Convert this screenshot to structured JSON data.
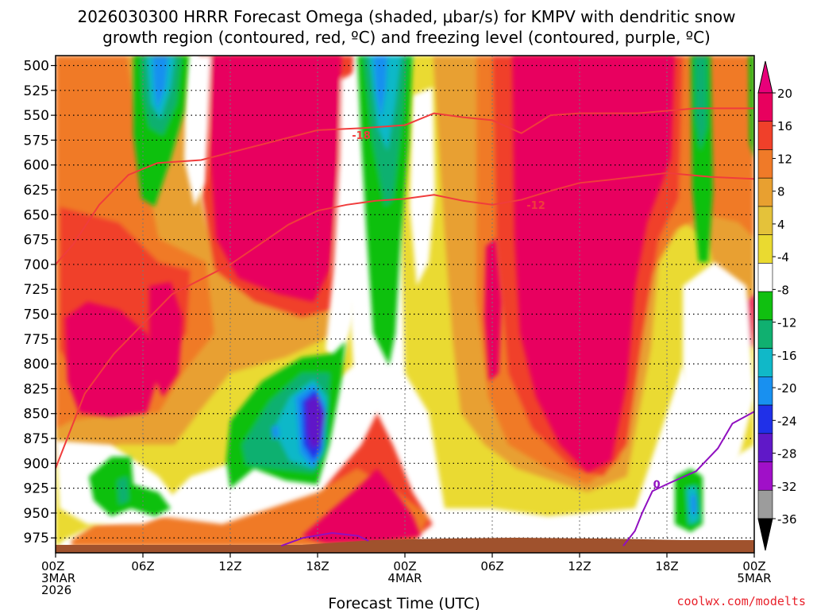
{
  "chart_data": {
    "type": "heatmap",
    "title_line1": "2026030300 HRRR Forecast Omega (shaded, μbar/s) for KMPV with dendritic snow",
    "title_line2": "growth region (contoured, red, ºC) and freezing level (contoured, purple, ºC)",
    "xlabel": "Forecast Time (UTC)",
    "credit": "coolwx.com/modelts",
    "y_ticks": [
      500,
      525,
      550,
      575,
      600,
      625,
      650,
      675,
      700,
      725,
      750,
      775,
      800,
      825,
      850,
      875,
      900,
      925,
      950,
      975
    ],
    "ylim": [
      490,
      990
    ],
    "x_range_hours": [
      0,
      48
    ],
    "x_ticks": [
      {
        "hour": 0,
        "label": "00Z",
        "sub1": "3MAR",
        "sub2": "2026"
      },
      {
        "hour": 6,
        "label": "06Z",
        "sub1": "",
        "sub2": ""
      },
      {
        "hour": 12,
        "label": "12Z",
        "sub1": "",
        "sub2": ""
      },
      {
        "hour": 18,
        "label": "18Z",
        "sub1": "",
        "sub2": ""
      },
      {
        "hour": 24,
        "label": "00Z",
        "sub1": "4MAR",
        "sub2": ""
      },
      {
        "hour": 30,
        "label": "06Z",
        "sub1": "",
        "sub2": ""
      },
      {
        "hour": 36,
        "label": "12Z",
        "sub1": "",
        "sub2": ""
      },
      {
        "hour": 42,
        "label": "18Z",
        "sub1": "",
        "sub2": ""
      },
      {
        "hour": 48,
        "label": "00Z",
        "sub1": "5MAR",
        "sub2": ""
      }
    ],
    "colorbar": {
      "labels": [
        "20",
        "16",
        "12",
        "8",
        "4",
        "-4",
        "-8",
        "-12",
        "-16",
        "-20",
        "-24",
        "-28",
        "-32",
        "-36"
      ],
      "bins": [
        {
          "color": "#e8005e"
        },
        {
          "color": "#f0402a"
        },
        {
          "color": "#f07a28"
        },
        {
          "color": "#e8a030"
        },
        {
          "color": "#e4c23a"
        },
        {
          "color": "#eada30"
        },
        {
          "color": "#ffffff"
        },
        {
          "color": "#10c010"
        },
        {
          "color": "#10b070"
        },
        {
          "color": "#10b8c8"
        },
        {
          "color": "#1890f0"
        },
        {
          "color": "#2030e8"
        },
        {
          "color": "#6018c8"
        },
        {
          "color": "#a010c8"
        },
        {
          "color": "#9c9c9c"
        }
      ],
      "top_color": "#e8007a",
      "bottom_color": "#000000"
    },
    "dgz_contours": [
      {
        "label": "-18",
        "color": "#f03c3c",
        "points": [
          [
            0,
            700
          ],
          [
            1.2,
            680
          ],
          [
            3,
            640
          ],
          [
            5,
            610
          ],
          [
            7,
            598
          ],
          [
            10,
            595
          ],
          [
            14,
            580
          ],
          [
            18,
            565
          ],
          [
            21,
            563
          ],
          [
            24,
            560
          ],
          [
            26,
            548
          ],
          [
            28,
            552
          ],
          [
            30,
            555
          ],
          [
            32,
            568
          ],
          [
            34,
            550
          ],
          [
            36,
            548
          ],
          [
            40,
            548
          ],
          [
            44,
            543
          ],
          [
            48,
            543
          ]
        ],
        "label_at": [
          21,
          570
        ]
      },
      {
        "label": "-12",
        "color": "#f03c3c",
        "points": [
          [
            0,
            905
          ],
          [
            2,
            830
          ],
          [
            4,
            790
          ],
          [
            6,
            760
          ],
          [
            8,
            730
          ],
          [
            10,
            715
          ],
          [
            12,
            700
          ],
          [
            14,
            680
          ],
          [
            16,
            660
          ],
          [
            18,
            646
          ],
          [
            20,
            640
          ],
          [
            22,
            636
          ],
          [
            24,
            634
          ],
          [
            26,
            630
          ],
          [
            28,
            636
          ],
          [
            30,
            640
          ],
          [
            32,
            635
          ],
          [
            34,
            626
          ],
          [
            36,
            618
          ],
          [
            38,
            615
          ],
          [
            42,
            608
          ],
          [
            45,
            612
          ],
          [
            48,
            614
          ]
        ],
        "label_at": [
          33,
          640
        ]
      }
    ],
    "freezing_contours": [
      {
        "label": "0",
        "color": "#9010c0",
        "points": [
          [
            15.5,
            983
          ],
          [
            17,
            975
          ],
          [
            19,
            970
          ],
          [
            20.8,
            973
          ],
          [
            21.5,
            978
          ]
        ],
        "label_at": null
      },
      {
        "label": "0",
        "color": "#9010c0",
        "points": [
          [
            39,
            983
          ],
          [
            39.8,
            968
          ],
          [
            40.3,
            950
          ],
          [
            41,
            928
          ],
          [
            42,
            921
          ],
          [
            44,
            908
          ],
          [
            45.5,
            885
          ],
          [
            46.5,
            860
          ],
          [
            48,
            848
          ]
        ],
        "label_at": [
          41.3,
          921
        ]
      }
    ],
    "terrain_color": "#a0522d"
  }
}
